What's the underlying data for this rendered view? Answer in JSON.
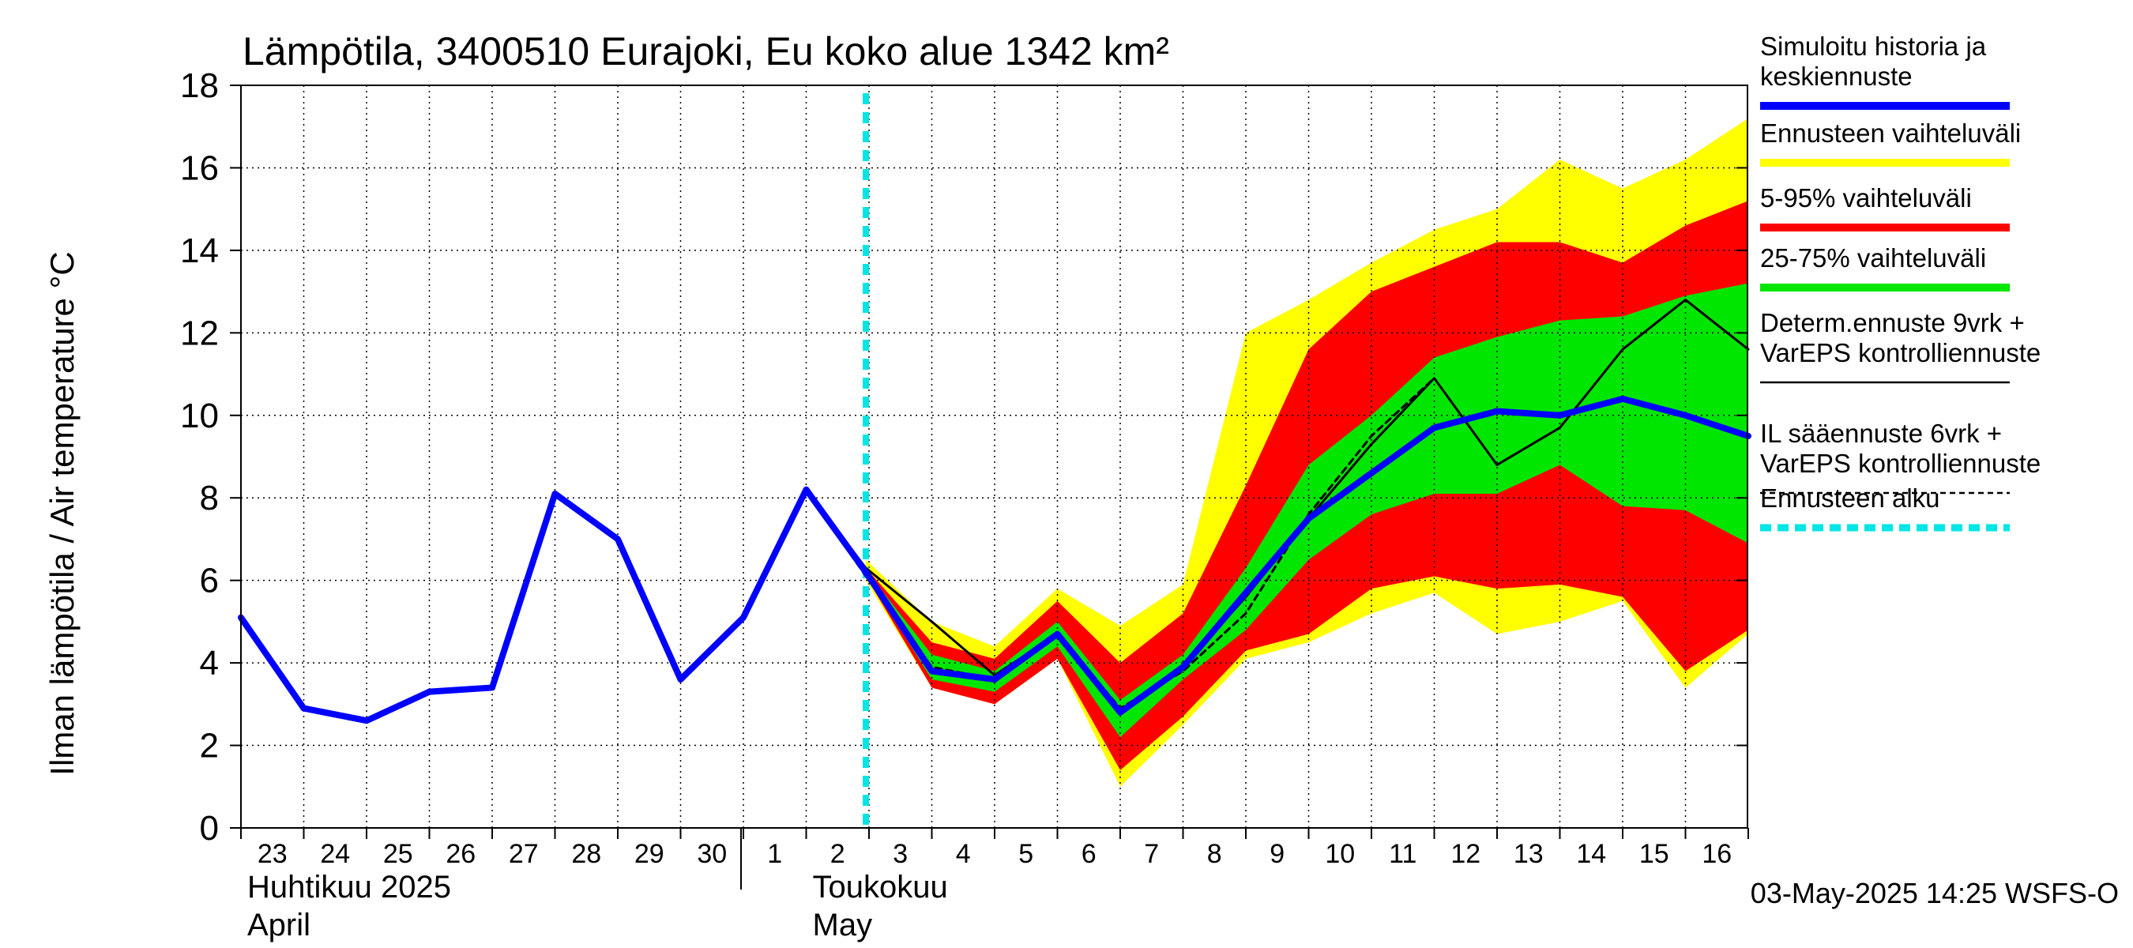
{
  "chart_data": {
    "type": "area",
    "title": "Lämpötila, 3400510 Eurajoki, Eu koko alue 1342 km²",
    "ylabel": "Ilman lämpötila / Air temperature    °C",
    "ylim": [
      0,
      18
    ],
    "yticks": [
      0,
      2,
      4,
      6,
      8,
      10,
      12,
      14,
      16,
      18
    ],
    "x_day_labels": [
      "23",
      "24",
      "25",
      "26",
      "27",
      "28",
      "29",
      "30",
      "1",
      "2",
      "3",
      "4",
      "5",
      "6",
      "7",
      "8",
      "9",
      "10",
      "11",
      "12",
      "13",
      "14",
      "15",
      "16"
    ],
    "month_labels": [
      {
        "line1": "Huhtikuu  2025",
        "line2": "April",
        "day_index": 0
      },
      {
        "line1": "Toukokuu",
        "line2": "May",
        "day_index": 9
      }
    ],
    "month_separator_day_index": 8,
    "forecast_start": 9.95,
    "timestamp": "03-May-2025 14:25 WSFS-O",
    "bands": [
      {
        "key": "yellow",
        "color": "#ffff00",
        "x": [
          9.95,
          11,
          12,
          13,
          14,
          15,
          16,
          17,
          18,
          19,
          20,
          21,
          22,
          23,
          24
        ],
        "upper": [
          6.5,
          5.0,
          4.4,
          5.8,
          4.9,
          5.9,
          12.0,
          12.8,
          13.7,
          14.5,
          15.0,
          16.2,
          15.5,
          16.2,
          17.2
        ],
        "lower": [
          6.0,
          3.4,
          3.0,
          4.1,
          1.0,
          2.5,
          4.1,
          4.5,
          5.2,
          5.7,
          4.7,
          5.0,
          5.5,
          3.4,
          4.7
        ]
      },
      {
        "key": "red",
        "color": "#ff0000",
        "x": [
          9.95,
          11,
          12,
          13,
          14,
          15,
          16,
          17,
          18,
          19,
          20,
          21,
          22,
          23,
          24
        ],
        "upper": [
          6.3,
          4.5,
          4.1,
          5.5,
          4.0,
          5.2,
          8.3,
          11.6,
          13.0,
          13.6,
          14.2,
          14.2,
          13.7,
          14.6,
          15.2
        ],
        "lower": [
          6.1,
          3.4,
          3.0,
          4.1,
          1.4,
          2.7,
          4.3,
          4.7,
          5.8,
          6.1,
          5.8,
          5.9,
          5.6,
          3.8,
          4.8
        ]
      },
      {
        "key": "green",
        "color": "#00e600",
        "x": [
          9.95,
          11,
          12,
          13,
          14,
          15,
          16,
          17,
          18,
          19,
          20,
          21,
          22,
          23,
          24
        ],
        "upper": [
          6.25,
          4.2,
          3.8,
          5.0,
          3.1,
          4.2,
          6.3,
          8.8,
          10.0,
          11.4,
          11.9,
          12.3,
          12.4,
          12.9,
          13.2
        ],
        "lower": [
          6.15,
          3.6,
          3.3,
          4.4,
          2.2,
          3.6,
          4.8,
          6.5,
          7.6,
          8.1,
          8.1,
          8.8,
          7.8,
          7.7,
          6.9
        ]
      }
    ],
    "series": [
      {
        "key": "det",
        "color": "#000000",
        "width": 3,
        "dash": "none",
        "x": [
          9,
          9.95,
          11,
          12,
          13,
          14,
          15,
          16,
          17,
          18,
          19,
          20,
          21,
          22,
          23,
          24
        ],
        "y": [
          8.2,
          6.3,
          5.0,
          3.7,
          4.7,
          2.8,
          3.9,
          5.6,
          7.5,
          9.3,
          10.9,
          8.8,
          9.7,
          11.6,
          12.8,
          11.6
        ]
      },
      {
        "key": "il",
        "color": "#000000",
        "width": 3,
        "dash": "8,6",
        "x": [
          9,
          9.95,
          11,
          12,
          13,
          14,
          15,
          16,
          17,
          18,
          19
        ],
        "y": [
          8.2,
          6.1,
          3.9,
          3.6,
          4.7,
          2.9,
          3.8,
          5.2,
          7.6,
          9.5,
          10.9
        ]
      },
      {
        "key": "sim",
        "color": "#0000ff",
        "width": 8,
        "dash": "none",
        "x": [
          0,
          1,
          2,
          3,
          4,
          5,
          6,
          7,
          8,
          9,
          9.95,
          11,
          12,
          13,
          14,
          15,
          16,
          17,
          18,
          19,
          20,
          21,
          22,
          23,
          24
        ],
        "y": [
          5.1,
          2.9,
          2.6,
          3.3,
          3.4,
          8.1,
          7.0,
          3.6,
          5.1,
          8.2,
          6.2,
          3.8,
          3.6,
          4.7,
          2.8,
          3.9,
          5.7,
          7.5,
          8.6,
          9.7,
          10.1,
          10.0,
          10.4,
          10.0,
          9.5
        ]
      }
    ],
    "legend": [
      {
        "label": "Simuloitu historia ja keskiennuste",
        "lines": [
          "Simuloitu historia ja",
          "keskiennuste"
        ],
        "color": "#0000ff",
        "style": "thick"
      },
      {
        "label": "Ennusteen vaihteluväli",
        "lines": [
          "Ennusteen vaihteluväli"
        ],
        "color": "#ffff00",
        "style": "thick"
      },
      {
        "label": "5-95% vaihteluväli",
        "lines": [
          "5-95% vaihteluväli"
        ],
        "color": "#ff0000",
        "style": "thick"
      },
      {
        "label": "25-75% vaihteluväli",
        "lines": [
          "25-75% vaihteluväli"
        ],
        "color": "#00e600",
        "style": "thick"
      },
      {
        "label": "Determ.ennuste 9vrk + VarEPS kontrolliennuste",
        "lines": [
          "Determ.ennuste 9vrk +",
          "VarEPS kontrolliennuste"
        ],
        "color": "#000000",
        "style": "thin"
      },
      {
        "label": "IL sääennuste 6vrk + VarEPS kontrolliennuste",
        "lines": [
          "IL sääennuste 6vrk  +",
          "  VarEPS kontrolliennuste"
        ],
        "color": "#000000",
        "style": "dashed"
      },
      {
        "label": "Ennusteen alku",
        "lines": [
          "Ennusteen alku"
        ],
        "color": "#00e5e5",
        "style": "cyan-dashed"
      }
    ]
  }
}
